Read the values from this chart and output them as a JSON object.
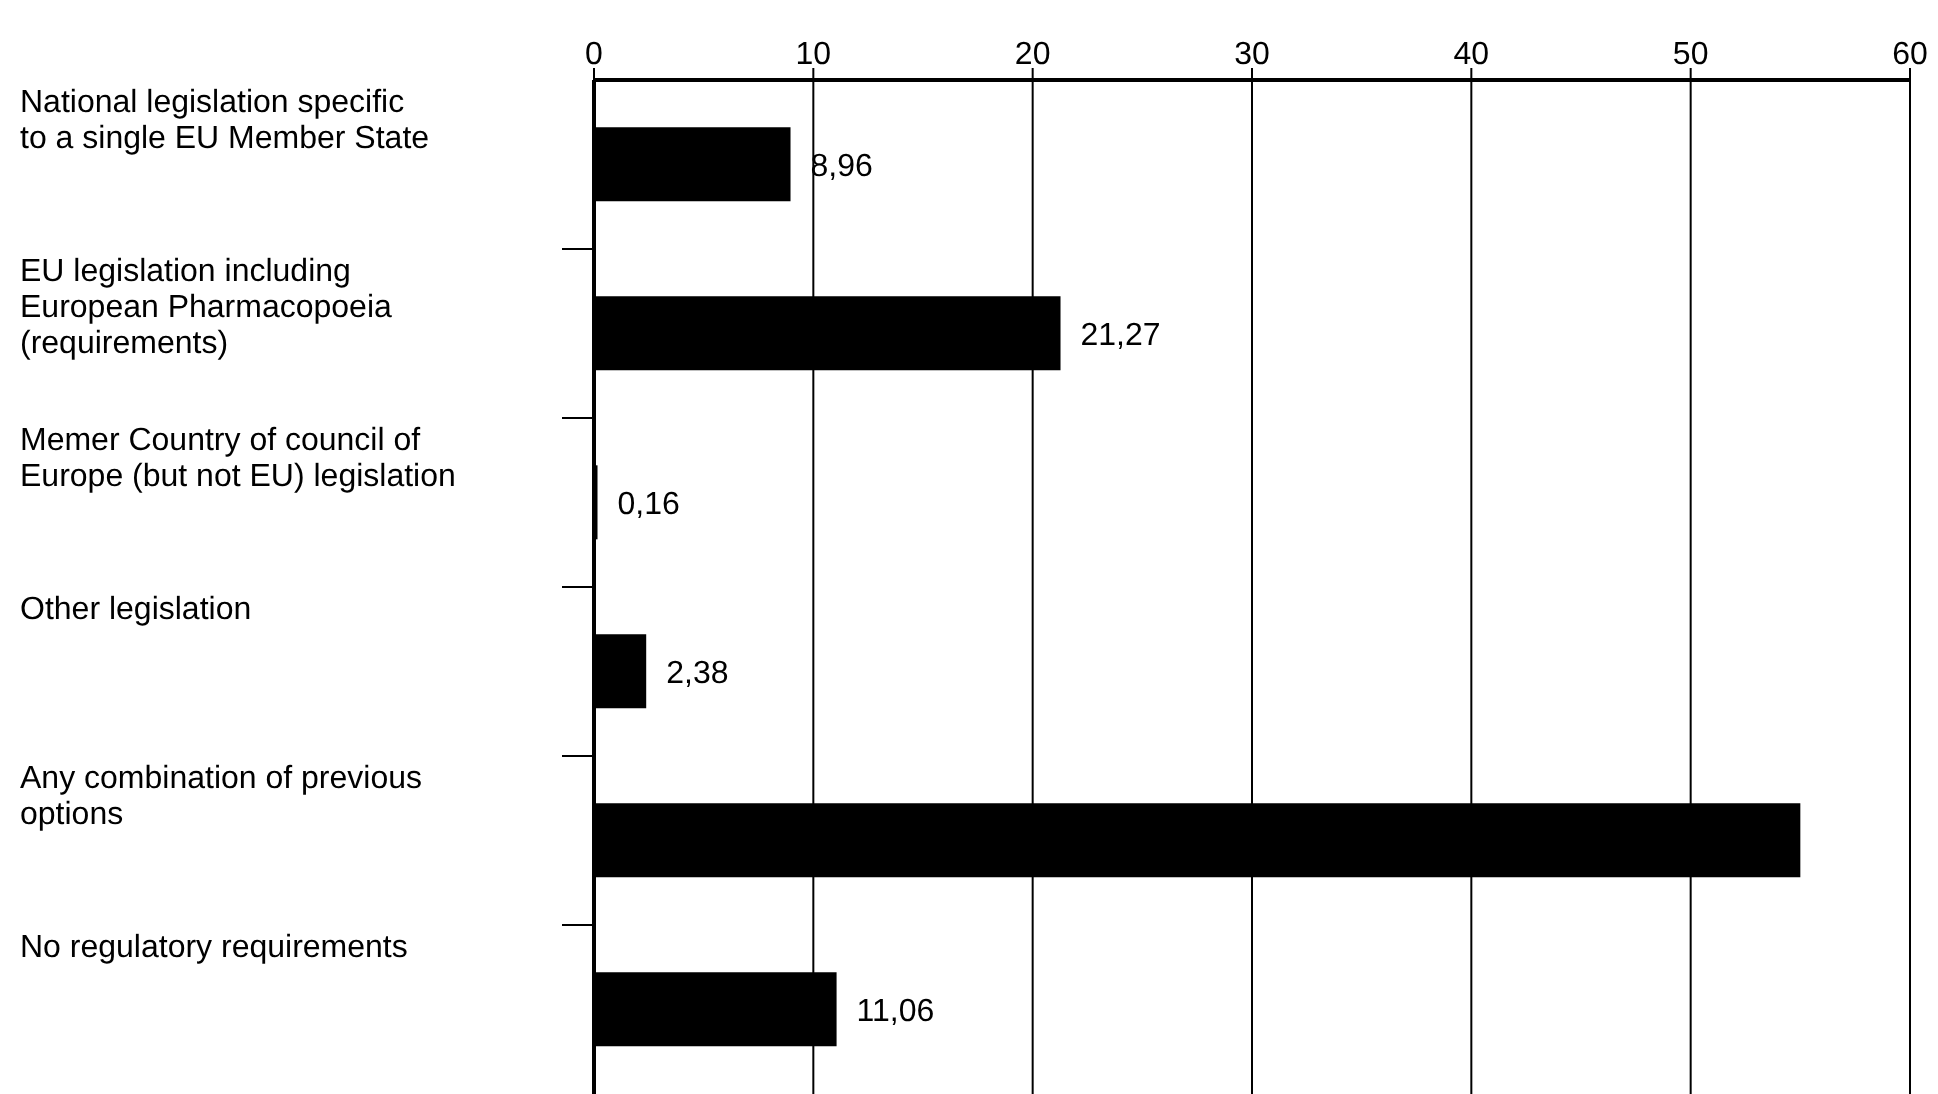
{
  "chart_data": {
    "type": "bar",
    "orientation": "horizontal",
    "categories": [
      "National legislation specific to a single EU Member State",
      "EU legislation including European Pharmacopoeia (requirements)",
      "Memer Country of council of Europe (but not EU) legislation",
      "Other legislation",
      "Any combination of previous options",
      "No regulatory requirements"
    ],
    "values": [
      8.96,
      21.27,
      0.16,
      2.38,
      55,
      11.06
    ],
    "value_labels": [
      "8,96",
      "21,27",
      "0,16",
      "2,38",
      null,
      "11,06"
    ],
    "color": "#000000",
    "xlim": [
      0,
      60
    ],
    "xticks": [
      0,
      10,
      20,
      30,
      40,
      50,
      60
    ],
    "grid": "x",
    "legend": false
  }
}
